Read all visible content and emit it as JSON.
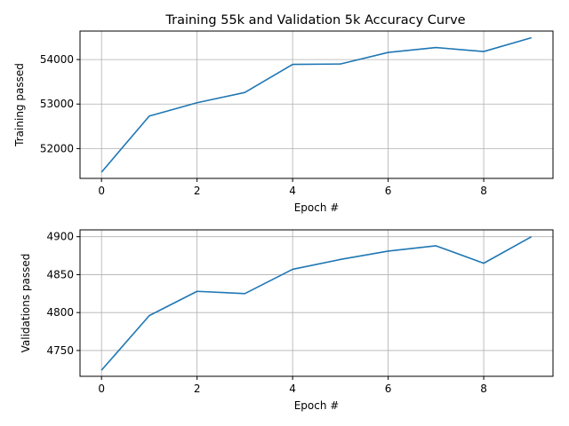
{
  "figure": {
    "title": "Training 55k and Validation 5k Accuracy Curve"
  },
  "chart_data": [
    {
      "type": "line",
      "title": "Training 55k and Validation 5k Accuracy Curve",
      "xlabel": "Epoch #",
      "ylabel": "Training passed",
      "x": [
        0,
        1,
        2,
        3,
        4,
        5,
        6,
        7,
        8,
        9
      ],
      "series": [
        {
          "values": [
            51470,
            52730,
            53030,
            53260,
            53890,
            53900,
            54160,
            54270,
            54180,
            54490
          ]
        }
      ],
      "xlim": [
        -0.45,
        9.45
      ],
      "ylim": [
        51330,
        54640
      ],
      "xticks": [
        0,
        2,
        4,
        6,
        8
      ],
      "xtick_labels": [
        "0",
        "2",
        "4",
        "6",
        "8"
      ],
      "yticks": [
        52000,
        53000,
        54000
      ],
      "ytick_labels": [
        "52000",
        "53000",
        "54000"
      ],
      "grid": true,
      "line_color": "#1f77b4"
    },
    {
      "type": "line",
      "title": "",
      "xlabel": "Epoch #",
      "ylabel": "Validations passed",
      "x": [
        0,
        1,
        2,
        3,
        4,
        5,
        6,
        7,
        8,
        9
      ],
      "series": [
        {
          "values": [
            4724,
            4796,
            4828,
            4825,
            4857,
            4870,
            4881,
            4888,
            4865,
            4900
          ]
        }
      ],
      "xlim": [
        -0.45,
        9.45
      ],
      "ylim": [
        4716,
        4909
      ],
      "xticks": [
        0,
        2,
        4,
        6,
        8
      ],
      "xtick_labels": [
        "0",
        "2",
        "4",
        "6",
        "8"
      ],
      "yticks": [
        4750,
        4800,
        4850,
        4900
      ],
      "ytick_labels": [
        "4750",
        "4800",
        "4850",
        "4900"
      ],
      "grid": true,
      "line_color": "#1f77b4"
    }
  ]
}
